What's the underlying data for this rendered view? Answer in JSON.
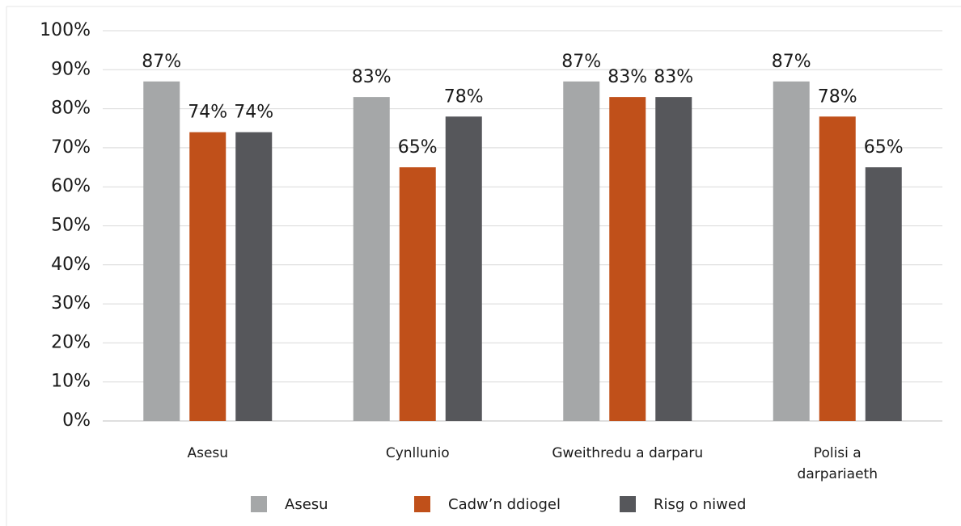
{
  "chart_data": {
    "type": "bar",
    "categories": [
      "Asesu",
      "Cynllunio",
      "Gweithredu a darparu",
      "Polisi a\ndarpariaeth"
    ],
    "series": [
      {
        "name": "Asesu",
        "color": "#a5a7a8",
        "values": [
          87,
          83,
          87,
          87
        ],
        "value_labels": [
          "87%",
          "83%",
          "87%",
          "87%"
        ]
      },
      {
        "name": "Cadw’n ddiogel",
        "color": "#c0501a",
        "values": [
          74,
          65,
          83,
          78
        ],
        "value_labels": [
          "74%",
          "65%",
          "83%",
          "78%"
        ]
      },
      {
        "name": "Risg o niwed",
        "color": "#56575b",
        "values": [
          74,
          78,
          83,
          65
        ],
        "value_labels": [
          "74%",
          "78%",
          "83%",
          "65%"
        ]
      }
    ],
    "ylim": [
      0,
      100
    ],
    "yticks": [
      {
        "value": 0,
        "label": "0%"
      },
      {
        "value": 10,
        "label": "10%"
      },
      {
        "value": 20,
        "label": "20%"
      },
      {
        "value": 30,
        "label": "30%"
      },
      {
        "value": 40,
        "label": "40%"
      },
      {
        "value": 50,
        "label": "50%"
      },
      {
        "value": 60,
        "label": "60%"
      },
      {
        "value": 70,
        "label": "70%"
      },
      {
        "value": 80,
        "label": "80%"
      },
      {
        "value": 90,
        "label": "90%"
      },
      {
        "value": 100,
        "label": "100%"
      }
    ],
    "grid": true,
    "legend": "bottom"
  }
}
